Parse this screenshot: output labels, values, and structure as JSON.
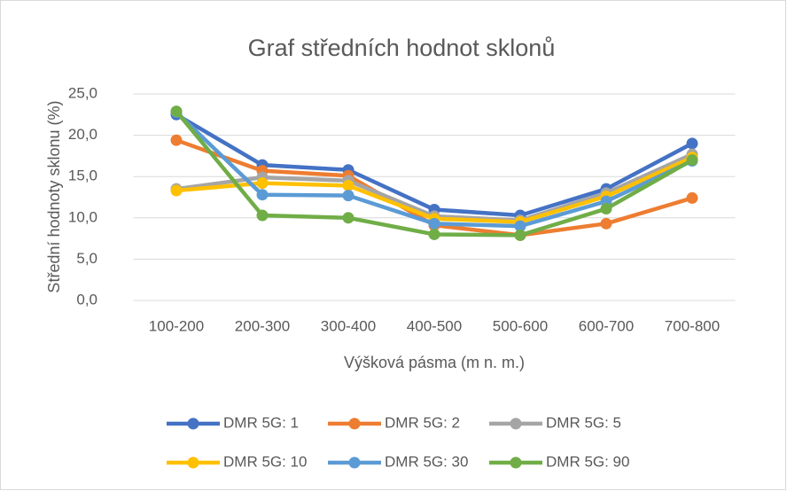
{
  "chart_data": {
    "type": "line",
    "title": "Graf středních hodnot sklonů",
    "x_label": "Výšková pásma (m n. m.)",
    "y_label": "Střední hodnoty sklonu (%)",
    "categories": [
      "100-200",
      "200-300",
      "300-400",
      "400-500",
      "500-600",
      "600-700",
      "700-800"
    ],
    "ylim": [
      0,
      25
    ],
    "yticks": [
      {
        "value": 0,
        "label": "0,0"
      },
      {
        "value": 5,
        "label": "5,0"
      },
      {
        "value": 10,
        "label": "10,0"
      },
      {
        "value": 15,
        "label": "15,0"
      },
      {
        "value": 20,
        "label": "20,0"
      },
      {
        "value": 25,
        "label": "25,0"
      }
    ],
    "grid": true,
    "legend": "bottom",
    "series": [
      {
        "name": "DMR 5G: 1",
        "color": "#4472c4",
        "values": [
          22.5,
          16.4,
          15.8,
          11.0,
          10.3,
          13.5,
          19.0
        ]
      },
      {
        "name": "DMR 5G: 2",
        "color": "#ed7d31",
        "values": [
          19.4,
          15.7,
          15.1,
          9.1,
          7.9,
          9.3,
          12.4
        ]
      },
      {
        "name": "DMR 5G: 5",
        "color": "#a5a5a5",
        "values": [
          13.5,
          14.9,
          14.5,
          10.2,
          9.7,
          13.0,
          17.7
        ]
      },
      {
        "name": "DMR 5G: 10",
        "color": "#ffc000",
        "values": [
          13.3,
          14.2,
          13.9,
          9.9,
          9.5,
          12.6,
          17.3
        ]
      },
      {
        "name": "DMR 5G: 30",
        "color": "#5b9bd5",
        "values": [
          22.8,
          12.8,
          12.7,
          9.3,
          9.0,
          12.0,
          16.9
        ]
      },
      {
        "name": "DMR 5G: 90",
        "color": "#70ad47",
        "values": [
          22.9,
          10.3,
          10.0,
          8.0,
          7.9,
          11.1,
          17.0
        ]
      }
    ]
  }
}
